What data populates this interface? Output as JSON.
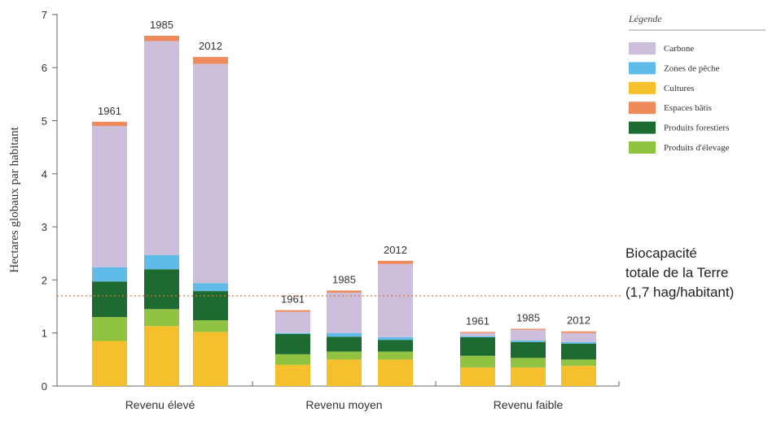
{
  "chart_data": {
    "type": "bar",
    "stacked": true,
    "ylabel": "Hectares globaux par habitant",
    "ylim": [
      0,
      7
    ],
    "yticks": [
      "0",
      "1",
      "2",
      "3",
      "4",
      "5",
      "6",
      "7"
    ],
    "groups": [
      "Revenu élevé",
      "Revenu moyen",
      "Revenu faible"
    ],
    "years": [
      "1961",
      "1985",
      "2012"
    ],
    "legend": {
      "title": "Légende",
      "position": "top-right",
      "items": [
        "Carbone",
        "Zones de pêche",
        "Cultures",
        "Espaces bâtis",
        "Produits forestiers",
        "Produits d'élevage"
      ]
    },
    "stack_order": [
      "Cultures",
      "Produits d'élevage",
      "Produits forestiers",
      "Zones de pêche",
      "Carbone",
      "Espaces bâtis"
    ],
    "colors": {
      "Carbone": "#cdbfdc",
      "Zones de pêche": "#5fbce8",
      "Cultures": "#f6c02c",
      "Espaces bâtis": "#ef8a5a",
      "Produits forestiers": "#1e6b32",
      "Produits d'élevage": "#8fc341"
    },
    "series": [
      {
        "name": "Cultures",
        "values": [
          0.85,
          1.13,
          1.02,
          0.4,
          0.5,
          0.5,
          0.35,
          0.35,
          0.38
        ]
      },
      {
        "name": "Produits d'élevage",
        "values": [
          0.45,
          0.32,
          0.22,
          0.2,
          0.15,
          0.15,
          0.22,
          0.18,
          0.12
        ]
      },
      {
        "name": "Produits forestiers",
        "values": [
          0.67,
          0.75,
          0.55,
          0.38,
          0.28,
          0.22,
          0.35,
          0.3,
          0.3
        ]
      },
      {
        "name": "Zones de pêche",
        "values": [
          0.27,
          0.27,
          0.15,
          0.02,
          0.07,
          0.05,
          0.02,
          0.03,
          0.03
        ]
      },
      {
        "name": "Carbone",
        "values": [
          2.66,
          4.03,
          4.13,
          0.4,
          0.76,
          1.38,
          0.06,
          0.2,
          0.17
        ]
      },
      {
        "name": "Espaces bâtis",
        "values": [
          0.08,
          0.1,
          0.13,
          0.03,
          0.04,
          0.06,
          0.02,
          0.02,
          0.03
        ]
      }
    ],
    "reference_line": {
      "value": 1.7,
      "label_lines": [
        "Biocapacité",
        "totale de la Terre",
        "(1,7 hag/habitant)"
      ],
      "color": "#d9704a"
    }
  }
}
